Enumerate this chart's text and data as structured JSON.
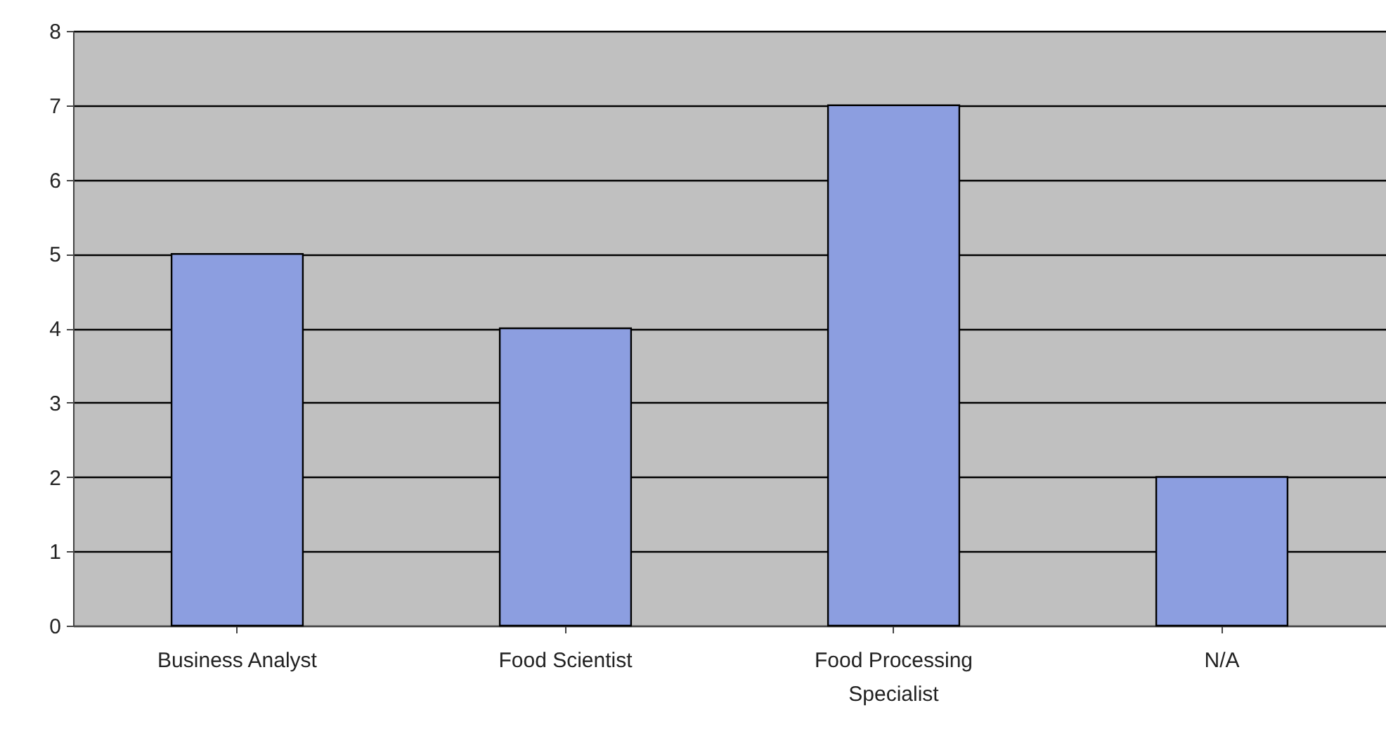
{
  "chart_data": {
    "type": "bar",
    "categories": [
      "Business Analyst",
      "Food Scientist",
      "Food Processing Specialist",
      "N/A"
    ],
    "values": [
      5,
      4,
      7,
      2
    ],
    "color": "#8c9ee0",
    "ylim": [
      0,
      8
    ],
    "yticks": [
      0,
      1,
      2,
      3,
      4,
      5,
      6,
      7,
      8
    ],
    "grid": "y"
  }
}
